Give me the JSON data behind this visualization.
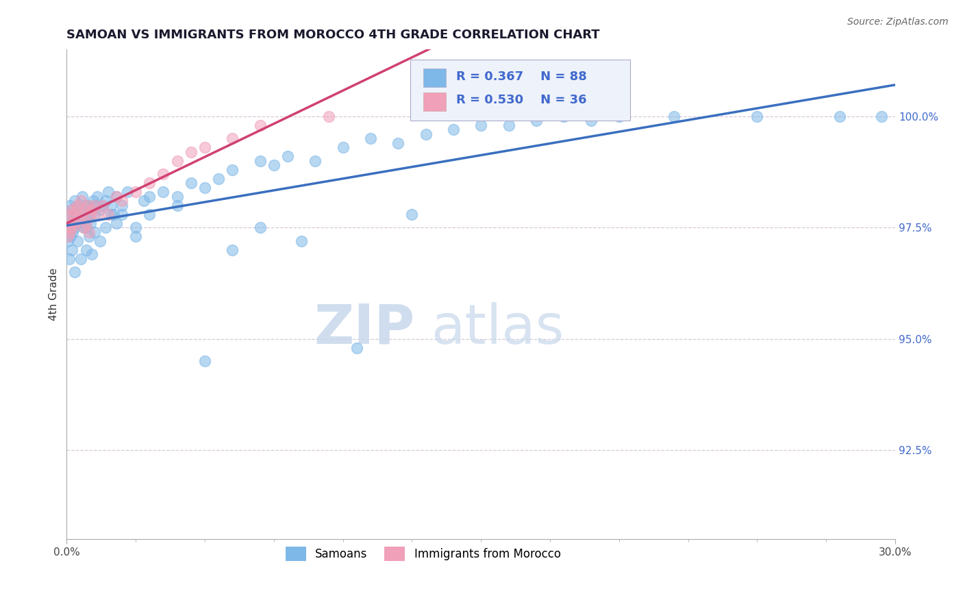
{
  "title": "SAMOAN VS IMMIGRANTS FROM MOROCCO 4TH GRADE CORRELATION CHART",
  "source": "Source: ZipAtlas.com",
  "ylabel": "4th Grade",
  "xlim": [
    0.0,
    30.0
  ],
  "ylim": [
    90.5,
    101.5
  ],
  "yticks": [
    92.5,
    95.0,
    97.5,
    100.0
  ],
  "ytick_labels": [
    "92.5%",
    "95.0%",
    "97.5%",
    "100.0%"
  ],
  "watermark_zip": "ZIP",
  "watermark_atlas": "atlas",
  "R_samoan": 0.367,
  "N_samoan": 88,
  "R_morocco": 0.53,
  "N_morocco": 36,
  "samoan_color": "#7EB8E8",
  "morocco_color": "#F0A0B8",
  "samoan_line_color": "#3A6FBF",
  "morocco_line_color": "#D04070",
  "legend_box_color": "#EEF2FA",
  "samoan_x": [
    0.05,
    0.08,
    0.1,
    0.12,
    0.15,
    0.18,
    0.2,
    0.22,
    0.25,
    0.28,
    0.3,
    0.35,
    0.4,
    0.45,
    0.5,
    0.55,
    0.6,
    0.65,
    0.7,
    0.75,
    0.8,
    0.85,
    0.9,
    0.95,
    1.0,
    1.05,
    1.1,
    1.2,
    1.3,
    1.4,
    1.5,
    1.6,
    1.7,
    1.8,
    2.0,
    2.2,
    2.5,
    2.8,
    3.0,
    3.5,
    4.0,
    4.5,
    5.0,
    5.5,
    6.0,
    7.0,
    7.5,
    8.0,
    9.0,
    10.0,
    11.0,
    12.0,
    13.0,
    14.0,
    15.0,
    16.0,
    17.0,
    18.0,
    19.0,
    20.0,
    22.0,
    25.0,
    28.0,
    29.5,
    0.1,
    0.2,
    0.3,
    0.4,
    0.5,
    0.6,
    0.7,
    0.8,
    0.9,
    1.0,
    1.2,
    1.4,
    1.6,
    1.8,
    2.0,
    2.5,
    3.0,
    4.0,
    5.0,
    6.0,
    7.0,
    8.5,
    10.5,
    12.5
  ],
  "samoan_y": [
    97.2,
    97.5,
    97.8,
    98.0,
    97.3,
    97.6,
    97.9,
    97.4,
    97.7,
    98.1,
    97.5,
    97.8,
    97.6,
    98.0,
    97.9,
    98.2,
    97.7,
    98.0,
    97.5,
    97.8,
    98.0,
    97.6,
    97.9,
    98.1,
    97.8,
    98.0,
    98.2,
    97.9,
    98.0,
    98.1,
    98.3,
    98.0,
    97.8,
    98.2,
    98.0,
    98.3,
    97.5,
    98.1,
    98.2,
    98.3,
    98.2,
    98.5,
    98.4,
    98.6,
    98.8,
    99.0,
    98.9,
    99.1,
    99.0,
    99.3,
    99.5,
    99.4,
    99.6,
    99.7,
    99.8,
    99.8,
    99.9,
    100.0,
    99.9,
    100.0,
    100.0,
    100.0,
    100.0,
    100.0,
    96.8,
    97.0,
    96.5,
    97.2,
    96.8,
    97.5,
    97.0,
    97.3,
    96.9,
    97.4,
    97.2,
    97.5,
    97.8,
    97.6,
    97.8,
    97.3,
    97.8,
    98.0,
    94.5,
    97.0,
    97.5,
    97.2,
    94.8,
    97.8
  ],
  "morocco_x": [
    0.05,
    0.08,
    0.1,
    0.12,
    0.15,
    0.18,
    0.2,
    0.25,
    0.3,
    0.35,
    0.4,
    0.45,
    0.5,
    0.55,
    0.6,
    0.65,
    0.7,
    0.75,
    0.8,
    0.85,
    0.9,
    1.0,
    1.1,
    1.3,
    1.5,
    1.8,
    2.0,
    2.5,
    3.0,
    3.5,
    4.0,
    4.5,
    5.0,
    6.0,
    7.0,
    9.5
  ],
  "morocco_y": [
    97.3,
    97.5,
    97.8,
    97.4,
    97.6,
    97.9,
    97.5,
    97.8,
    97.6,
    97.9,
    98.0,
    97.7,
    98.1,
    97.8,
    97.5,
    97.9,
    97.6,
    98.0,
    97.4,
    97.8,
    97.9,
    98.0,
    97.8,
    98.0,
    97.8,
    98.2,
    98.1,
    98.3,
    98.5,
    98.7,
    99.0,
    99.2,
    99.3,
    99.5,
    99.8,
    100.0
  ]
}
